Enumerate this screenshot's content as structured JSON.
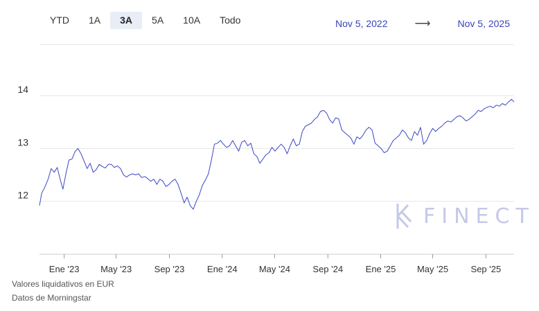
{
  "range_tabs": [
    {
      "label": "YTD",
      "active": false
    },
    {
      "label": "1A",
      "active": false
    },
    {
      "label": "3A",
      "active": true
    },
    {
      "label": "5A",
      "active": false
    },
    {
      "label": "10A",
      "active": false
    },
    {
      "label": "Todo",
      "active": false
    }
  ],
  "date_range": {
    "from": "Nov 5, 2022",
    "arrow": "⟶",
    "to": "Nov 5, 2025"
  },
  "footer": {
    "line1": "Valores liquidativos en EUR",
    "line2": "Datos de Morningstar"
  },
  "watermark": {
    "text": "FINECT",
    "icon": "finect-logo-icon"
  },
  "colors": {
    "line": "#3a46c4",
    "accent": "#3844b5",
    "grid": "#e6e6e6",
    "active_tab_bg": "#e8edf6"
  },
  "chart_data": {
    "type": "line",
    "title": "",
    "xlabel": "",
    "ylabel": "",
    "x_start": "2022-11-05",
    "x_end": "2025-11-05",
    "xticks": [
      {
        "date": "2023-01-01",
        "label": "Ene '23"
      },
      {
        "date": "2023-05-01",
        "label": "May '23"
      },
      {
        "date": "2023-09-01",
        "label": "Sep '23"
      },
      {
        "date": "2024-01-01",
        "label": "Ene '24"
      },
      {
        "date": "2024-05-01",
        "label": "May '24"
      },
      {
        "date": "2024-09-01",
        "label": "Sep '24"
      },
      {
        "date": "2025-01-01",
        "label": "Ene '25"
      },
      {
        "date": "2025-05-01",
        "label": "May '25"
      },
      {
        "date": "2025-09-01",
        "label": "Sep '25"
      }
    ],
    "yticks": [
      12,
      13,
      14
    ],
    "ylim": [
      11.0,
      14.97
    ],
    "grid": true,
    "series": [
      {
        "points": [
          [
            "2022-11-05",
            11.92
          ],
          [
            "2022-11-10",
            12.15
          ],
          [
            "2022-11-18",
            12.28
          ],
          [
            "2022-11-25",
            12.42
          ],
          [
            "2022-12-02",
            12.62
          ],
          [
            "2022-12-09",
            12.55
          ],
          [
            "2022-12-16",
            12.64
          ],
          [
            "2022-12-22",
            12.44
          ],
          [
            "2022-12-29",
            12.23
          ],
          [
            "2023-01-05",
            12.52
          ],
          [
            "2023-01-12",
            12.78
          ],
          [
            "2023-01-19",
            12.8
          ],
          [
            "2023-01-26",
            12.94
          ],
          [
            "2023-02-02",
            13.0
          ],
          [
            "2023-02-09",
            12.9
          ],
          [
            "2023-02-16",
            12.76
          ],
          [
            "2023-02-23",
            12.62
          ],
          [
            "2023-03-02",
            12.72
          ],
          [
            "2023-03-09",
            12.55
          ],
          [
            "2023-03-16",
            12.6
          ],
          [
            "2023-03-23",
            12.7
          ],
          [
            "2023-03-30",
            12.66
          ],
          [
            "2023-04-06",
            12.63
          ],
          [
            "2023-04-13",
            12.7
          ],
          [
            "2023-04-20",
            12.7
          ],
          [
            "2023-04-27",
            12.64
          ],
          [
            "2023-05-04",
            12.67
          ],
          [
            "2023-05-11",
            12.62
          ],
          [
            "2023-05-18",
            12.5
          ],
          [
            "2023-05-25",
            12.46
          ],
          [
            "2023-06-01",
            12.5
          ],
          [
            "2023-06-08",
            12.52
          ],
          [
            "2023-06-15",
            12.5
          ],
          [
            "2023-06-22",
            12.52
          ],
          [
            "2023-06-29",
            12.45
          ],
          [
            "2023-07-06",
            12.47
          ],
          [
            "2023-07-13",
            12.43
          ],
          [
            "2023-07-20",
            12.38
          ],
          [
            "2023-07-27",
            12.42
          ],
          [
            "2023-08-03",
            12.32
          ],
          [
            "2023-08-10",
            12.42
          ],
          [
            "2023-08-17",
            12.38
          ],
          [
            "2023-08-24",
            12.28
          ],
          [
            "2023-08-31",
            12.32
          ],
          [
            "2023-09-07",
            12.38
          ],
          [
            "2023-09-14",
            12.42
          ],
          [
            "2023-09-21",
            12.32
          ],
          [
            "2023-09-28",
            12.15
          ],
          [
            "2023-10-05",
            11.97
          ],
          [
            "2023-10-12",
            12.08
          ],
          [
            "2023-10-19",
            11.92
          ],
          [
            "2023-10-26",
            11.85
          ],
          [
            "2023-11-02",
            12.0
          ],
          [
            "2023-11-09",
            12.12
          ],
          [
            "2023-11-16",
            12.3
          ],
          [
            "2023-11-23",
            12.4
          ],
          [
            "2023-11-30",
            12.52
          ],
          [
            "2023-12-07",
            12.78
          ],
          [
            "2023-12-14",
            13.08
          ],
          [
            "2023-12-21",
            13.1
          ],
          [
            "2023-12-28",
            13.15
          ],
          [
            "2024-01-04",
            13.08
          ],
          [
            "2024-01-11",
            13.02
          ],
          [
            "2024-01-18",
            13.05
          ],
          [
            "2024-01-25",
            13.15
          ],
          [
            "2024-02-01",
            13.05
          ],
          [
            "2024-02-08",
            12.95
          ],
          [
            "2024-02-15",
            13.12
          ],
          [
            "2024-02-22",
            13.15
          ],
          [
            "2024-02-29",
            13.05
          ],
          [
            "2024-03-07",
            13.1
          ],
          [
            "2024-03-14",
            12.9
          ],
          [
            "2024-03-21",
            12.85
          ],
          [
            "2024-03-28",
            12.72
          ],
          [
            "2024-04-04",
            12.8
          ],
          [
            "2024-04-11",
            12.88
          ],
          [
            "2024-04-18",
            12.92
          ],
          [
            "2024-04-25",
            13.02
          ],
          [
            "2024-05-02",
            12.95
          ],
          [
            "2024-05-09",
            13.02
          ],
          [
            "2024-05-16",
            13.08
          ],
          [
            "2024-05-23",
            13.02
          ],
          [
            "2024-05-30",
            12.9
          ],
          [
            "2024-06-06",
            13.05
          ],
          [
            "2024-06-13",
            13.18
          ],
          [
            "2024-06-20",
            13.05
          ],
          [
            "2024-06-27",
            13.08
          ],
          [
            "2024-07-04",
            13.32
          ],
          [
            "2024-07-11",
            13.42
          ],
          [
            "2024-07-18",
            13.45
          ],
          [
            "2024-07-25",
            13.48
          ],
          [
            "2024-08-01",
            13.55
          ],
          [
            "2024-08-08",
            13.6
          ],
          [
            "2024-08-15",
            13.7
          ],
          [
            "2024-08-22",
            13.72
          ],
          [
            "2024-08-29",
            13.67
          ],
          [
            "2024-09-05",
            13.55
          ],
          [
            "2024-09-12",
            13.48
          ],
          [
            "2024-09-19",
            13.58
          ],
          [
            "2024-09-26",
            13.56
          ],
          [
            "2024-10-03",
            13.35
          ],
          [
            "2024-10-10",
            13.3
          ],
          [
            "2024-10-17",
            13.25
          ],
          [
            "2024-10-24",
            13.2
          ],
          [
            "2024-10-31",
            13.08
          ],
          [
            "2024-11-07",
            13.22
          ],
          [
            "2024-11-14",
            13.18
          ],
          [
            "2024-11-21",
            13.25
          ],
          [
            "2024-11-28",
            13.35
          ],
          [
            "2024-12-05",
            13.4
          ],
          [
            "2024-12-12",
            13.35
          ],
          [
            "2024-12-19",
            13.1
          ],
          [
            "2024-12-26",
            13.05
          ],
          [
            "2025-01-02",
            13.0
          ],
          [
            "2025-01-09",
            12.92
          ],
          [
            "2025-01-16",
            12.95
          ],
          [
            "2025-01-23",
            13.05
          ],
          [
            "2025-01-30",
            13.15
          ],
          [
            "2025-02-06",
            13.2
          ],
          [
            "2025-02-13",
            13.25
          ],
          [
            "2025-02-20",
            13.35
          ],
          [
            "2025-02-27",
            13.3
          ],
          [
            "2025-03-06",
            13.2
          ],
          [
            "2025-03-13",
            13.15
          ],
          [
            "2025-03-20",
            13.32
          ],
          [
            "2025-03-27",
            13.25
          ],
          [
            "2025-04-03",
            13.4
          ],
          [
            "2025-04-10",
            13.08
          ],
          [
            "2025-04-17",
            13.15
          ],
          [
            "2025-04-24",
            13.28
          ],
          [
            "2025-05-01",
            13.38
          ],
          [
            "2025-05-08",
            13.32
          ],
          [
            "2025-05-15",
            13.38
          ],
          [
            "2025-05-22",
            13.42
          ],
          [
            "2025-05-29",
            13.48
          ],
          [
            "2025-06-05",
            13.52
          ],
          [
            "2025-06-12",
            13.5
          ],
          [
            "2025-06-19",
            13.55
          ],
          [
            "2025-06-26",
            13.6
          ],
          [
            "2025-07-03",
            13.62
          ],
          [
            "2025-07-10",
            13.58
          ],
          [
            "2025-07-17",
            13.52
          ],
          [
            "2025-07-24",
            13.55
          ],
          [
            "2025-07-31",
            13.6
          ],
          [
            "2025-08-07",
            13.65
          ],
          [
            "2025-08-14",
            13.72
          ],
          [
            "2025-08-21",
            13.7
          ],
          [
            "2025-08-28",
            13.75
          ],
          [
            "2025-09-04",
            13.78
          ],
          [
            "2025-09-11",
            13.8
          ],
          [
            "2025-09-18",
            13.77
          ],
          [
            "2025-09-25",
            13.82
          ],
          [
            "2025-10-02",
            13.8
          ],
          [
            "2025-10-09",
            13.85
          ],
          [
            "2025-10-16",
            13.82
          ],
          [
            "2025-10-23",
            13.88
          ],
          [
            "2025-10-30",
            13.93
          ],
          [
            "2025-11-05",
            13.88
          ]
        ]
      }
    ]
  }
}
